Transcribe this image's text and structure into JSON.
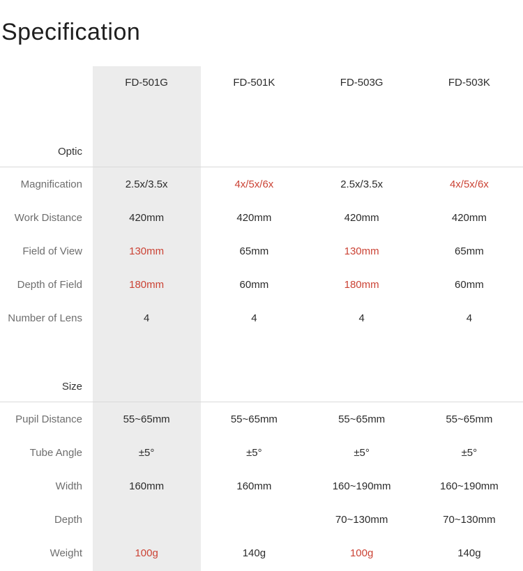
{
  "page": {
    "title": "Specification"
  },
  "colors": {
    "accent_red": "#cb4335",
    "highlight_column_bg": "#ececec",
    "divider": "#d9d9d9",
    "row_label_text": "#6e6e6e",
    "value_text": "#2b2b2b"
  },
  "spec_table": {
    "columns": [
      "FD-501G",
      "FD-501K",
      "FD-503G",
      "FD-503K"
    ],
    "highlighted_column": "FD-501G",
    "sections": [
      {
        "name": "Optic",
        "rows": [
          {
            "label": "Magnification",
            "values": [
              {
                "text": "2.5x/3.5x",
                "highlight": false
              },
              {
                "text": "4x/5x/6x",
                "highlight": true
              },
              {
                "text": "2.5x/3.5x",
                "highlight": false
              },
              {
                "text": "4x/5x/6x",
                "highlight": true
              }
            ]
          },
          {
            "label": "Work Distance",
            "values": [
              {
                "text": "420mm",
                "highlight": false
              },
              {
                "text": "420mm",
                "highlight": false
              },
              {
                "text": "420mm",
                "highlight": false
              },
              {
                "text": "420mm",
                "highlight": false
              }
            ]
          },
          {
            "label": "Field of View",
            "values": [
              {
                "text": "130mm",
                "highlight": true
              },
              {
                "text": "65mm",
                "highlight": false
              },
              {
                "text": "130mm",
                "highlight": true
              },
              {
                "text": "65mm",
                "highlight": false
              }
            ]
          },
          {
            "label": "Depth of Field",
            "values": [
              {
                "text": "180mm",
                "highlight": true
              },
              {
                "text": "60mm",
                "highlight": false
              },
              {
                "text": "180mm",
                "highlight": true
              },
              {
                "text": "60mm",
                "highlight": false
              }
            ]
          },
          {
            "label": "Number of Lens",
            "values": [
              {
                "text": "4",
                "highlight": false
              },
              {
                "text": "4",
                "highlight": false
              },
              {
                "text": "4",
                "highlight": false
              },
              {
                "text": "4",
                "highlight": false
              }
            ]
          }
        ]
      },
      {
        "name": "Size",
        "rows": [
          {
            "label": "Pupil Distance",
            "values": [
              {
                "text": "55~65mm",
                "highlight": false
              },
              {
                "text": "55~65mm",
                "highlight": false
              },
              {
                "text": "55~65mm",
                "highlight": false
              },
              {
                "text": "55~65mm",
                "highlight": false
              }
            ]
          },
          {
            "label": "Tube Angle",
            "values": [
              {
                "text": "±5°",
                "highlight": false
              },
              {
                "text": "±5°",
                "highlight": false
              },
              {
                "text": "±5°",
                "highlight": false
              },
              {
                "text": "±5°",
                "highlight": false
              }
            ]
          },
          {
            "label": "Width",
            "values": [
              {
                "text": "160mm",
                "highlight": false
              },
              {
                "text": "160mm",
                "highlight": false
              },
              {
                "text": "160~190mm",
                "highlight": false
              },
              {
                "text": "160~190mm",
                "highlight": false
              }
            ]
          },
          {
            "label": "Depth",
            "values": [
              {
                "text": "",
                "highlight": false
              },
              {
                "text": "",
                "highlight": false
              },
              {
                "text": "70~130mm",
                "highlight": false
              },
              {
                "text": "70~130mm",
                "highlight": false
              }
            ]
          },
          {
            "label": "Weight",
            "values": [
              {
                "text": "100g",
                "highlight": true
              },
              {
                "text": "140g",
                "highlight": false
              },
              {
                "text": "100g",
                "highlight": true
              },
              {
                "text": "140g",
                "highlight": false
              }
            ]
          }
        ]
      }
    ]
  }
}
